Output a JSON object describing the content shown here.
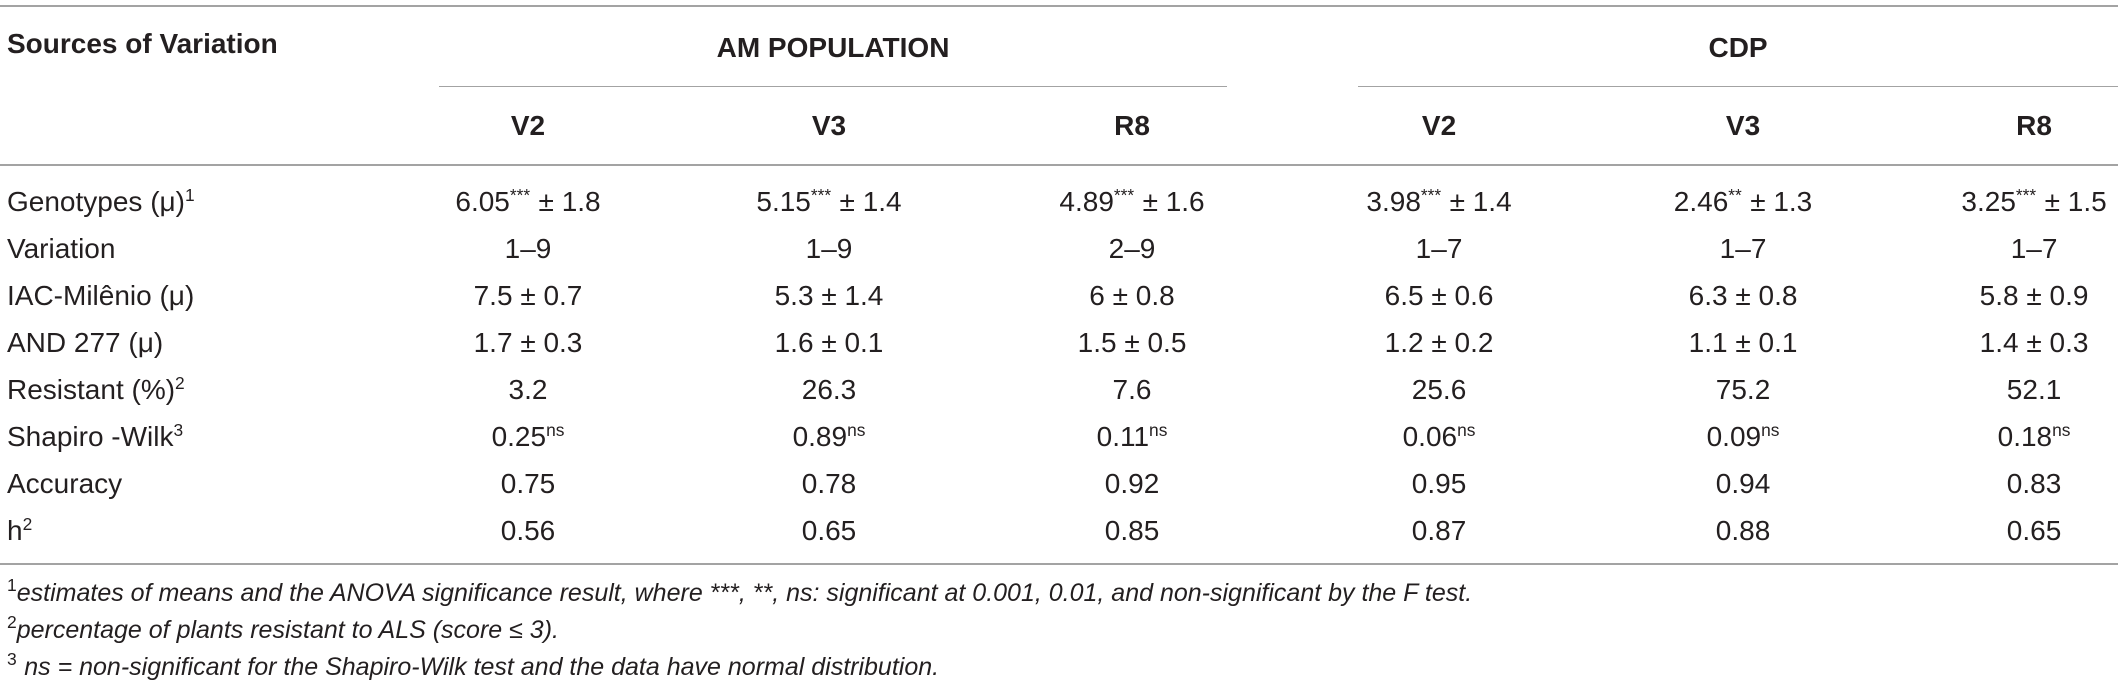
{
  "table": {
    "header": {
      "sources_label": "Sources of Variation",
      "am_group": "AM POPULATION",
      "cdp_group": "CDP",
      "am_stages": [
        "V2",
        "V3",
        "R8"
      ],
      "cdp_stages": [
        "V2",
        "V3",
        "R8"
      ]
    },
    "rows": [
      {
        "label": "Genotypes (μ)",
        "label_sup": "1",
        "cells": [
          {
            "value": "6.05",
            "sup": "***",
            "sd": "± 1.8"
          },
          {
            "value": "5.15",
            "sup": "***",
            "sd": "± 1.4"
          },
          {
            "value": "4.89",
            "sup": "***",
            "sd": "± 1.6"
          },
          {
            "value": "3.98",
            "sup": "***",
            "sd": "± 1.4"
          },
          {
            "value": "2.46",
            "sup": "**",
            "sd": "± 1.3"
          },
          {
            "value": "3.25",
            "sup": "***",
            "sd": "± 1.5"
          }
        ]
      },
      {
        "label": "Variation",
        "cells": [
          "1–9",
          "1–9",
          "2–9",
          "1–7",
          "1–7",
          "1–7"
        ]
      },
      {
        "label": "IAC-Milênio (μ)",
        "cells": [
          "7.5 ± 0.7",
          "5.3 ± 1.4",
          "6 ± 0.8",
          "6.5 ± 0.6",
          "6.3 ± 0.8",
          "5.8 ± 0.9"
        ]
      },
      {
        "label": "AND 277 (μ)",
        "cells": [
          "1.7 ± 0.3",
          "1.6 ± 0.1",
          "1.5 ± 0.5",
          "1.2 ± 0.2",
          "1.1 ± 0.1",
          "1.4 ± 0.3"
        ]
      },
      {
        "label": "Resistant (%)",
        "label_sup": "2",
        "cells": [
          "3.2",
          "26.3",
          "7.6",
          "25.6",
          "75.2",
          "52.1"
        ]
      },
      {
        "label": "Shapiro -Wilk",
        "label_sup": "3",
        "cells": [
          {
            "value": "0.25",
            "sup": "ns"
          },
          {
            "value": "0.89",
            "sup": "ns"
          },
          {
            "value": "0.11",
            "sup": "ns"
          },
          {
            "value": "0.06",
            "sup": "ns"
          },
          {
            "value": "0.09",
            "sup": "ns"
          },
          {
            "value": "0.18",
            "sup": "ns"
          }
        ]
      },
      {
        "label": "Accuracy",
        "cells": [
          "0.75",
          "0.78",
          "0.92",
          "0.95",
          "0.94",
          "0.83"
        ]
      },
      {
        "label": "h",
        "label_sup": "2",
        "cells": [
          "0.56",
          "0.65",
          "0.85",
          "0.87",
          "0.88",
          "0.65"
        ]
      }
    ]
  },
  "footnotes": [
    {
      "mark": "1",
      "text": "estimates of means and the ANOVA significance result, where ***, **, ns: significant at 0.001, 0.01, and non-significant by the F test."
    },
    {
      "mark": "2",
      "text": "percentage of plants resistant to ALS (score ≤ 3)."
    },
    {
      "mark": "3",
      "text": "ns = non-significant for the Shapiro-Wilk test and the data have normal distribution."
    }
  ]
}
